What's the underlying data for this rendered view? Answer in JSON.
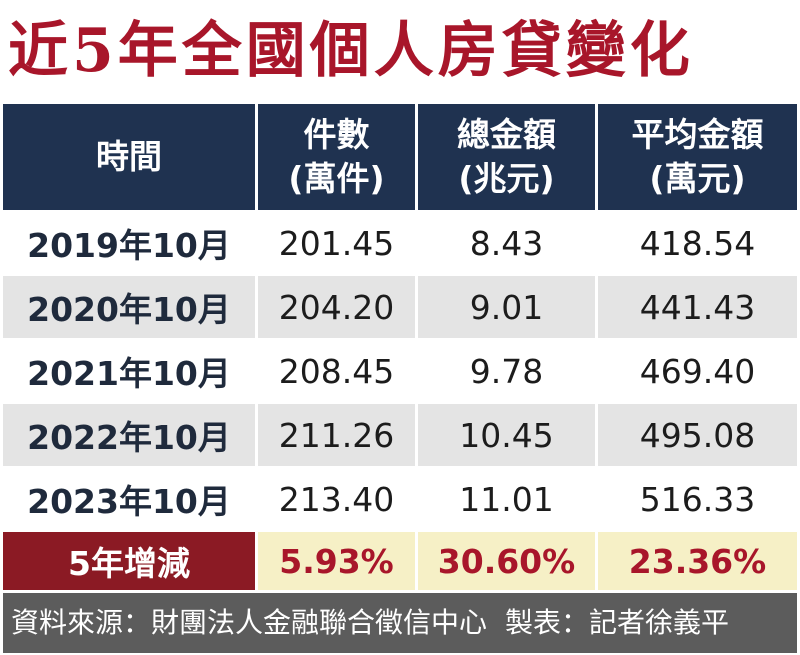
{
  "colors": {
    "title": "#a8162a",
    "header_bg": "#1f3250",
    "total_label_bg": "#8b1a24",
    "total_cell_bg": "#f6f0c6",
    "total_value": "#a8162a",
    "footer_bg": "#5c5c5c"
  },
  "title": "近5年全國個人房貸變化",
  "chart_data": {
    "type": "table",
    "columns": [
      {
        "line1": "時間",
        "line2": ""
      },
      {
        "line1": "件數",
        "line2": "(萬件)"
      },
      {
        "line1": "總金額",
        "line2": "(兆元)"
      },
      {
        "line1": "平均金額",
        "line2": "(萬元)"
      }
    ],
    "rows": [
      {
        "period": "2019年10月",
        "count": "201.45",
        "total": "8.43",
        "average": "418.54"
      },
      {
        "period": "2020年10月",
        "count": "204.20",
        "total": "9.01",
        "average": "441.43"
      },
      {
        "period": "2021年10月",
        "count": "208.45",
        "total": "9.78",
        "average": "469.40"
      },
      {
        "period": "2022年10月",
        "count": "211.26",
        "total": "10.45",
        "average": "495.08"
      },
      {
        "period": "2023年10月",
        "count": "213.40",
        "total": "11.01",
        "average": "516.33"
      }
    ],
    "change": {
      "label": "5年增減",
      "count": "5.93%",
      "total": "30.60%",
      "average": "23.36%"
    }
  },
  "footer": {
    "source": "資料來源：財團法人金融聯合徵信中心",
    "credit": "製表：記者徐義平"
  }
}
